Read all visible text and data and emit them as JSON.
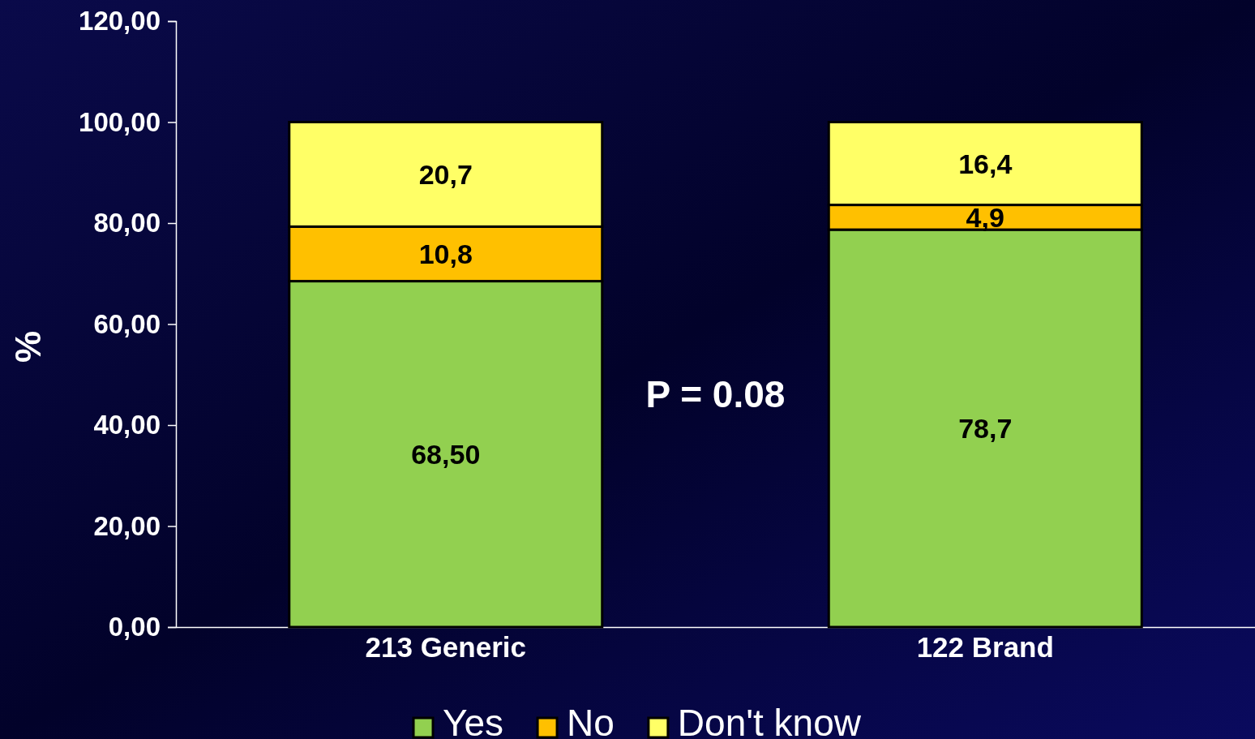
{
  "chart_data": {
    "type": "bar",
    "stacked": true,
    "ylabel": "%",
    "categories": [
      "213 Generic",
      "122 Brand"
    ],
    "series": [
      {
        "name": "Yes",
        "color": "#92d050",
        "values": [
          68.5,
          78.7
        ],
        "value_labels": [
          "68,50",
          "78,7"
        ]
      },
      {
        "name": "No",
        "color": "#ffc000",
        "values": [
          10.8,
          4.9
        ],
        "value_labels": [
          "10,8",
          "4,9"
        ]
      },
      {
        "name": "Don't know",
        "color": "#ffff66",
        "values": [
          20.7,
          16.4
        ],
        "value_labels": [
          "20,7",
          "16,4"
        ]
      }
    ],
    "ylim": [
      0,
      120
    ],
    "yticks": [
      {
        "value": 0,
        "label": "0,00"
      },
      {
        "value": 20,
        "label": "20,00"
      },
      {
        "value": 40,
        "label": "40,00"
      },
      {
        "value": 60,
        "label": "60,00"
      },
      {
        "value": 80,
        "label": "80,00"
      },
      {
        "value": 100,
        "label": "100,00"
      },
      {
        "value": 120,
        "label": "120,00"
      }
    ],
    "grid": false,
    "legend": "bottom",
    "annotations": [
      "P = 0.08"
    ]
  }
}
